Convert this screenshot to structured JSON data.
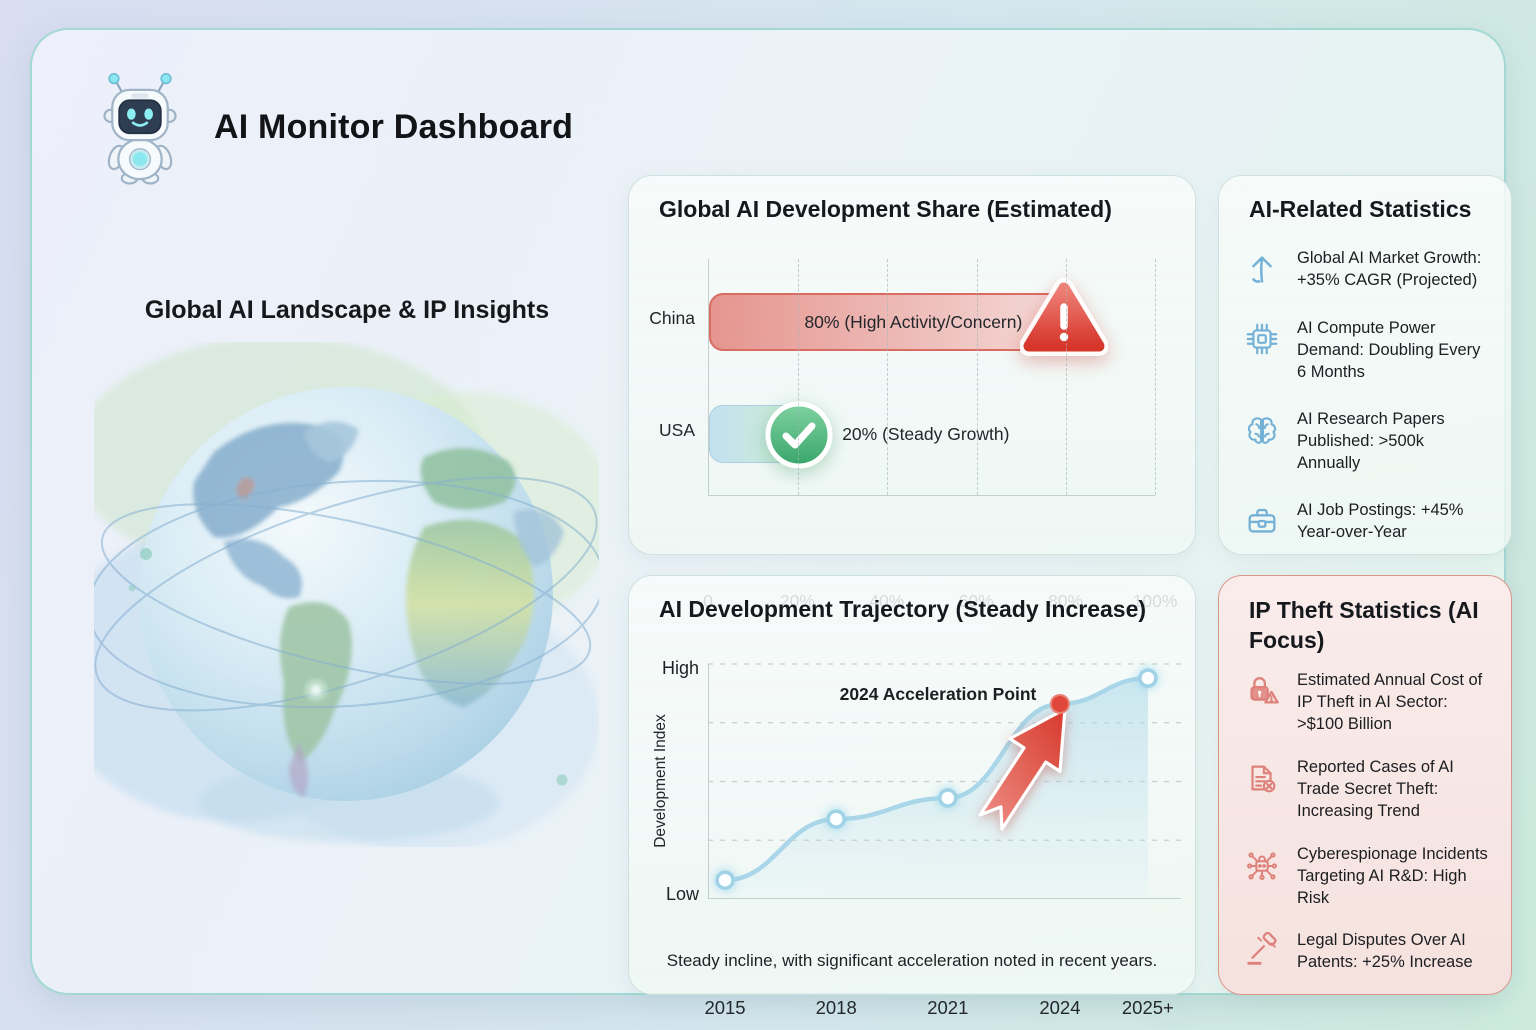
{
  "header": {
    "title": "AI Monitor Dashboard",
    "logo": "robot-mascot"
  },
  "left_section": {
    "heading": "Global AI Landscape & IP Insights",
    "illustration": "watercolor-globe-with-orbits"
  },
  "stats_panel": {
    "title": "AI-Related Statistics",
    "items": [
      {
        "icon": "trend-up-icon",
        "text": "Global AI Market Growth: +35% CAGR (Projected)"
      },
      {
        "icon": "chip-icon",
        "text": "AI Compute Power Demand: Doubling Every 6 Months"
      },
      {
        "icon": "brain-icon",
        "text": "AI Research Papers Published: >500k Annually"
      },
      {
        "icon": "briefcase-icon",
        "text": "AI Job Postings: +45% Year-over-Year"
      }
    ]
  },
  "ip_panel": {
    "title": "IP Theft Statistics (AI Focus)",
    "items": [
      {
        "icon": "lock-warning-icon",
        "text": "Estimated Annual Cost of IP Theft in AI Sector: >$100 Billion"
      },
      {
        "icon": "document-x-icon",
        "text": "Reported Cases of AI Trade Secret Theft: Increasing Trend"
      },
      {
        "icon": "cyber-network-icon",
        "text": "Cyberespionage Incidents Targeting AI R&D: High Risk"
      },
      {
        "icon": "gavel-icon",
        "text": "Legal Disputes Over AI Patents: +25% Increase"
      }
    ]
  },
  "colors": {
    "alert_red": "#d9453a",
    "ok_green": "#43a86f",
    "icon_blue": "#74b1d6",
    "icon_red": "#de817a",
    "line_blue": "#a9d6e8"
  },
  "chart_data": [
    {
      "type": "bar",
      "title": "Global AI Development Share (Estimated)",
      "categories": [
        "China",
        "USA"
      ],
      "values": [
        80,
        20
      ],
      "bar_labels": [
        "80% (High Activity/Concern)",
        "20% (Steady Growth)"
      ],
      "badges": [
        "warning-triangle",
        "check-circle"
      ],
      "x_ticks": [
        "0",
        "20%",
        "40%",
        "60%",
        "80%",
        "100%"
      ],
      "xlim": [
        0,
        100
      ],
      "grid": "vertical-dashed"
    },
    {
      "type": "line",
      "title": "AI Development Trajectory (Steady Increase)",
      "x": [
        "2015",
        "2018",
        "2021",
        "2024",
        "2025+"
      ],
      "values": [
        8,
        34,
        43,
        83,
        94
      ],
      "ylim": [
        0,
        100
      ],
      "ylabel": "Development Index",
      "y_tick_labels": [
        "Low",
        "High"
      ],
      "annotation": "2024 Acceleration Point",
      "highlight_index": 3,
      "caption": "Steady incline, with significant acceleration noted in recent years.",
      "grid": "horizontal-dashed",
      "area_fill": true
    }
  ]
}
